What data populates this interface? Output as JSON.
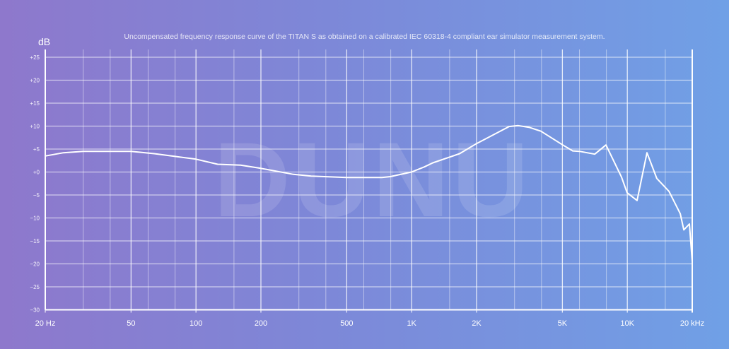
{
  "chart_data": {
    "type": "line",
    "title": "Uncompensated frequency response curve of the TITAN S as obtained on a calibrated IEC 60318-4 compliant ear simulator measurement system.",
    "ylabel": "dB",
    "xlabel": "",
    "xscale": "log",
    "xlim": [
      20,
      20000
    ],
    "ylim": [
      -30,
      25
    ],
    "grid": true,
    "watermark": "DUNU",
    "x_ticks": [
      {
        "value": 20,
        "label": "20 Hz"
      },
      {
        "value": 50,
        "label": "50"
      },
      {
        "value": 100,
        "label": "100"
      },
      {
        "value": 200,
        "label": "200"
      },
      {
        "value": 500,
        "label": "500"
      },
      {
        "value": 1000,
        "label": "1K"
      },
      {
        "value": 2000,
        "label": "2K"
      },
      {
        "value": 5000,
        "label": "5K"
      },
      {
        "value": 10000,
        "label": "10K"
      },
      {
        "value": 20000,
        "label": "20 kHz"
      }
    ],
    "x_minor_grid": [
      30,
      40,
      60,
      80,
      150,
      300,
      400,
      600,
      800,
      1500,
      3000,
      4000,
      6000,
      8000,
      15000
    ],
    "y_ticks": [
      {
        "value": 25,
        "label": "+25"
      },
      {
        "value": 20,
        "label": "+20"
      },
      {
        "value": 15,
        "label": "+15"
      },
      {
        "value": 10,
        "label": "+10"
      },
      {
        "value": 5,
        "label": "+5"
      },
      {
        "value": 0,
        "label": "+0"
      },
      {
        "value": -5,
        "label": "−5"
      },
      {
        "value": -10,
        "label": "−10"
      },
      {
        "value": -15,
        "label": "−15"
      },
      {
        "value": -20,
        "label": "−20"
      },
      {
        "value": -25,
        "label": "−25"
      },
      {
        "value": -30,
        "label": "−30"
      }
    ],
    "series": [
      {
        "name": "TITAN S",
        "color": "#ffffff",
        "x": [
          20,
          24.3,
          30,
          50,
          64,
          80,
          100,
          126,
          161,
          200,
          283,
          342,
          499,
          728,
          796,
          998,
          1144,
          1253,
          1668,
          2000,
          2344,
          2830,
          3120,
          3524,
          3975,
          5020,
          5584,
          6000,
          7060,
          7960,
          9400,
          9980,
          11100,
          12340,
          13700,
          15600,
          17600,
          18280,
          19400,
          20000
        ],
        "y": [
          3.5,
          4.2,
          4.5,
          4.5,
          4.0,
          3.4,
          2.8,
          1.7,
          1.5,
          0.8,
          -0.5,
          -0.9,
          -1.2,
          -1.2,
          -1.0,
          0.0,
          1.1,
          2.0,
          4.0,
          6.2,
          7.9,
          9.9,
          10.1,
          9.7,
          8.9,
          5.9,
          4.6,
          4.5,
          3.9,
          5.9,
          -1.1,
          -4.5,
          -6.2,
          4.2,
          -1.4,
          -4.2,
          -9.1,
          -12.6,
          -11.3,
          -19.5
        ]
      }
    ]
  }
}
